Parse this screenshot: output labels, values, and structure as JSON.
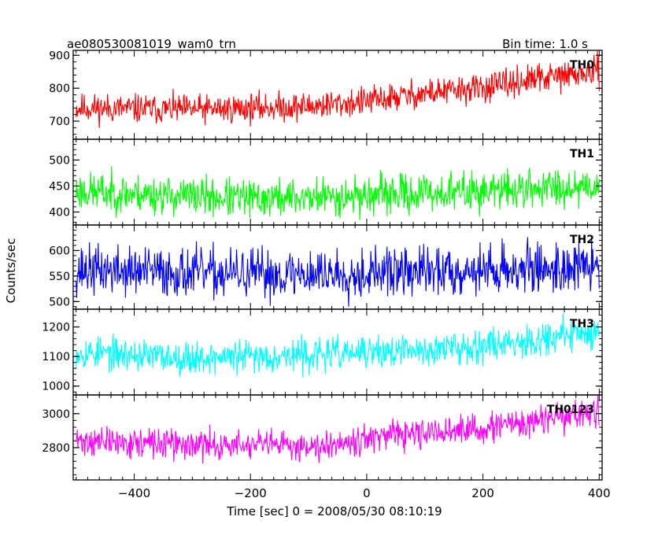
{
  "chart_data": {
    "type": "line",
    "title": "ae080530081019_wam0_trn",
    "bin_label": "Bin time: 1.0 s",
    "xlabel": "Time [sec] 0 = 2008/05/30 08:10:19",
    "ylabel": "Counts/sec",
    "xlim": [
      -505,
      405
    ],
    "xticks": [
      -400,
      -200,
      0,
      200,
      400
    ],
    "x_sampling": {
      "start": -500,
      "end": 400,
      "step": 1
    },
    "grid": false,
    "panels": [
      {
        "name": "TH0",
        "color": "#ff0000",
        "ylim": [
          645,
          915
        ],
        "yticks": [
          700,
          800,
          900
        ],
        "trend": {
          "x": [
            -500,
            -300,
            -100,
            0,
            100,
            200,
            300,
            400
          ],
          "y": [
            740,
            735,
            745,
            760,
            785,
            800,
            830,
            850
          ]
        },
        "noise": 38,
        "seed": 11
      },
      {
        "name": "TH1",
        "color": "#00ff00",
        "ylim": [
          375,
          540
        ],
        "yticks": [
          400,
          450,
          500
        ],
        "trend": {
          "x": [
            -500,
            -200,
            0,
            200,
            400
          ],
          "y": [
            440,
            425,
            432,
            440,
            452
          ]
        },
        "noise": 32,
        "seed": 23
      },
      {
        "name": "TH2",
        "color": "#0000ff",
        "ylim": [
          485,
          650
        ],
        "yticks": [
          500,
          550,
          600
        ],
        "trend": {
          "x": [
            -500,
            -200,
            0,
            200,
            400
          ],
          "y": [
            562,
            553,
            556,
            562,
            568
          ]
        },
        "noise": 42,
        "seed": 37
      },
      {
        "name": "TH3",
        "color": "#00ffff",
        "ylim": [
          970,
          1260
        ],
        "yticks": [
          1000,
          1100,
          1200
        ],
        "trend": {
          "x": [
            -500,
            -300,
            -100,
            100,
            300,
            400
          ],
          "y": [
            1115,
            1095,
            1105,
            1120,
            1160,
            1185
          ]
        },
        "noise": 48,
        "seed": 53
      },
      {
        "name": "TH0123",
        "color": "#ff00ff",
        "ylim": [
          2610,
          3110
        ],
        "yticks": [
          2800,
          3000
        ],
        "trend": {
          "x": [
            -500,
            -300,
            -100,
            0,
            100,
            200,
            300,
            400
          ],
          "y": [
            2840,
            2815,
            2810,
            2855,
            2880,
            2910,
            2960,
            3010
          ]
        },
        "noise": 75,
        "seed": 71
      }
    ]
  }
}
